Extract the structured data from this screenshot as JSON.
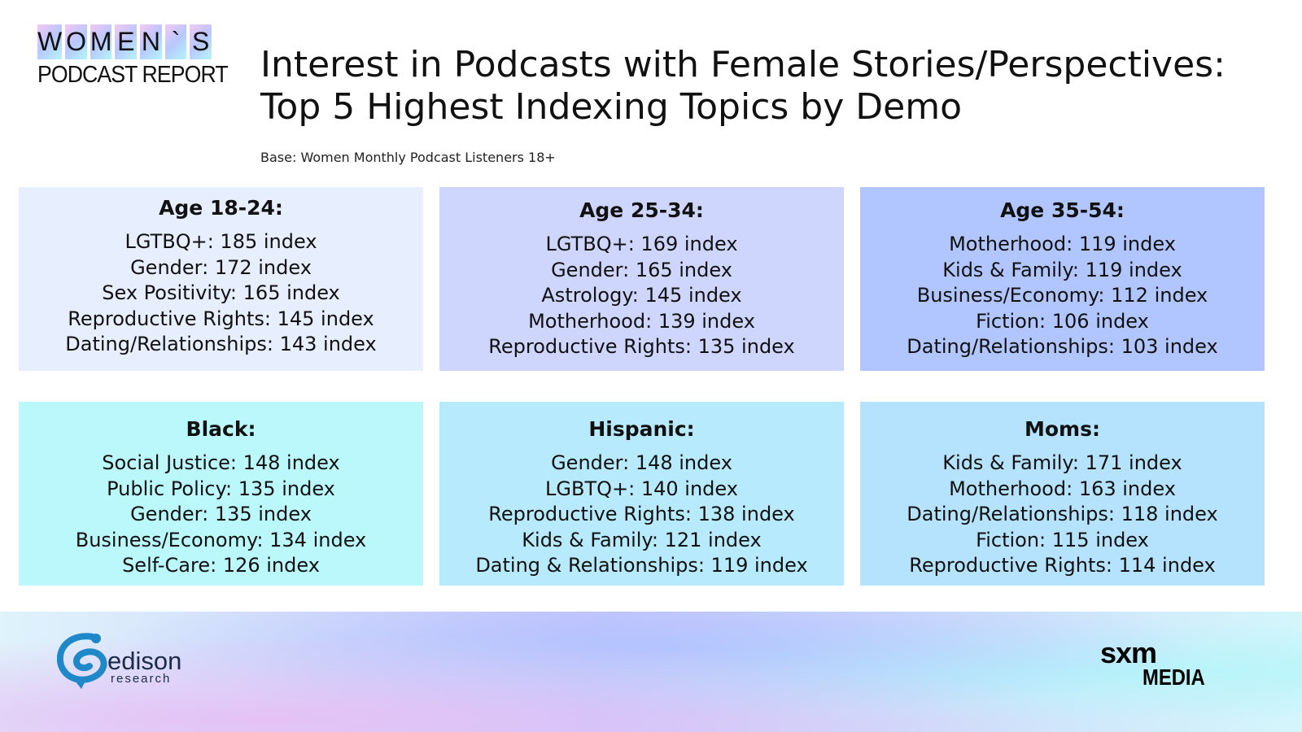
{
  "logo": {
    "letters": [
      "W",
      "O",
      "M",
      "E",
      "N",
      "`",
      "S"
    ],
    "subtitle": "PODCAST REPORT"
  },
  "title": {
    "line1": "Interest in Podcasts with Female Stories/Perspectives:",
    "line2": "Top 5 Highest Indexing Topics by Demo"
  },
  "base_note": "Base: Women Monthly Podcast Listeners 18+",
  "boxes": [
    {
      "title": "Age 18-24:",
      "color": "#e7eefe",
      "items": [
        "LGTBQ+: 185 index",
        "Gender: 172 index",
        "Sex Positivity: 165 index",
        "Reproductive Rights: 145 index",
        "Dating/Relationships: 143 index"
      ]
    },
    {
      "title": "Age 25-34:",
      "color": "#ced6fe",
      "items": [
        "LGTBQ+: 169 index",
        "Gender: 165 index",
        "Astrology: 145 index",
        "Motherhood: 139 index",
        "Reproductive Rights: 135 index"
      ]
    },
    {
      "title": "Age 35-54:",
      "color": "#b1c5fe",
      "items": [
        "Motherhood: 119 index",
        "Kids & Family: 119 index",
        "Business/Economy: 112 index",
        "Fiction: 106 index",
        "Dating/Relationships: 103 index"
      ]
    },
    {
      "title": "Black:",
      "color": "#bbf8fc",
      "items": [
        "Social Justice: 148 index",
        "Public Policy: 135 index",
        "Gender: 135 index",
        "Business/Economy: 134 index",
        "Self-Care: 126 index"
      ]
    },
    {
      "title": "Hispanic:",
      "color": "#b7eafd",
      "items": [
        "Gender: 148 index",
        "LGBTQ+: 140 index",
        "Reproductive Rights: 138 index",
        "Kids & Family: 121 index",
        "Dating & Relationships: 119 index"
      ]
    },
    {
      "title": "Moms:",
      "color": "#b5e2fd",
      "items": [
        "Kids & Family: 171 index",
        "Motherhood: 163 index",
        "Dating/Relationships: 118 index",
        "Fiction: 115 index",
        "Reproductive Rights: 114 index"
      ]
    }
  ],
  "footer": {
    "edison_word": "edison",
    "edison_sub": "research",
    "sxm_top": "sxm",
    "sxm_bottom": "MEDIA",
    "edison_color": "#1e88c8"
  }
}
